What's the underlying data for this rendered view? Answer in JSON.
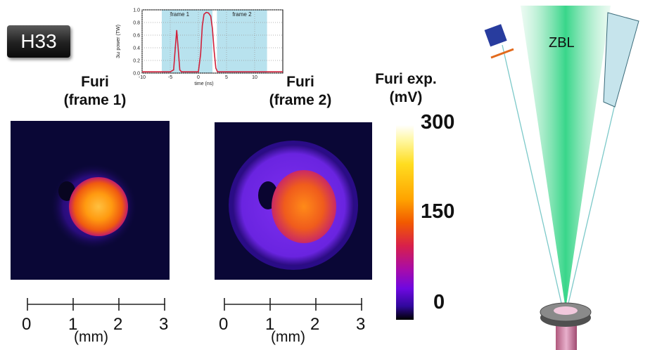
{
  "badge": "H33",
  "titles": {
    "frame1_line1": "Furi",
    "frame1_line2": "(frame 1)",
    "frame2_line1": "Furi",
    "frame2_line2": "(frame 2)"
  },
  "colorbar": {
    "title_line1": "Furi exp.",
    "title_line2": "(mV)",
    "ticks": [
      "300",
      "150",
      "0"
    ]
  },
  "scale_bar": {
    "ticks": [
      "0",
      "1",
      "2",
      "3"
    ],
    "unit": "(mm)"
  },
  "inset": {
    "ylabel": "3ω power (TW)",
    "xlabel": "time (ns)",
    "frame1_label": "frame 1",
    "frame2_label": "frame 2",
    "yticks": [
      "1.0",
      "0.8",
      "0.6",
      "0.4",
      "0.2",
      "0.0"
    ],
    "xticks": [
      "-10",
      "-5",
      "0",
      "5",
      "10"
    ]
  },
  "chart_data": {
    "type": "line",
    "title": "",
    "xlabel": "time (ns)",
    "ylabel": "3ω power (TW)",
    "xlim": [
      -10,
      15
    ],
    "ylim": [
      0,
      1.0
    ],
    "shaded_regions": [
      {
        "name": "frame 1",
        "x": [
          -6.5,
          2.5
        ]
      },
      {
        "name": "frame 2",
        "x": [
          3.3,
          12.2
        ]
      }
    ],
    "series": [
      {
        "x": [
          -10,
          -5,
          -4.4,
          -4.1,
          -3.85,
          -3.6,
          -3.3,
          -3,
          -2.5,
          0,
          0.4,
          0.7,
          1.0,
          1.4,
          1.8,
          2.2,
          2.5,
          2.8,
          3.1,
          3.4,
          3.8,
          15
        ],
        "y": [
          0.02,
          0.02,
          0.05,
          0.4,
          0.68,
          0.4,
          0.05,
          0.02,
          0.02,
          0.02,
          0.3,
          0.75,
          0.93,
          0.96,
          0.95,
          0.9,
          0.7,
          0.35,
          0.08,
          0.02,
          0.02,
          0.02
        ],
        "color": "#d0203a"
      }
    ]
  },
  "diagram": {
    "beam_label": "ZBL"
  }
}
